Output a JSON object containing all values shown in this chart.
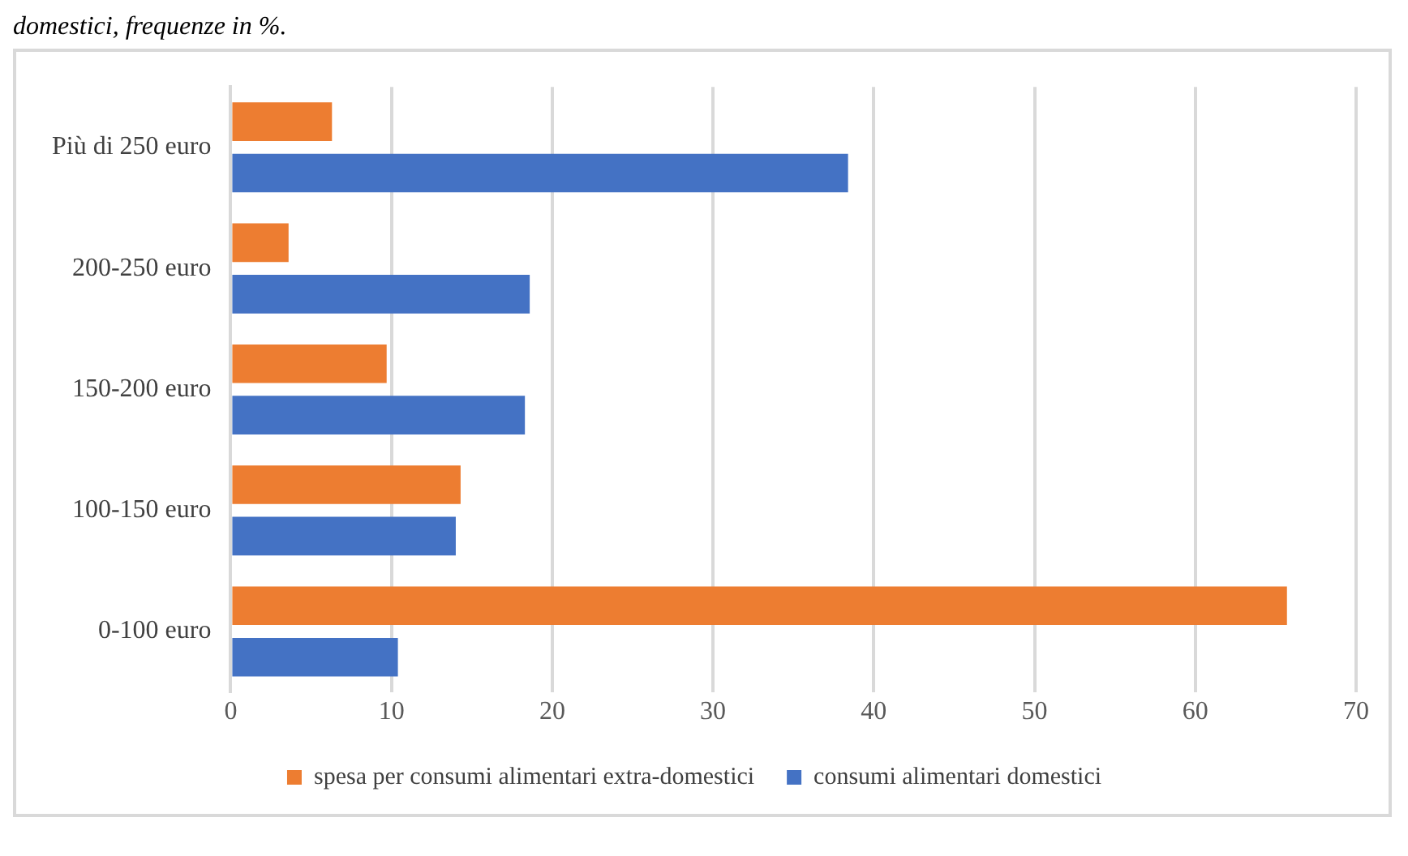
{
  "chart_data": {
    "type": "bar",
    "orientation": "horizontal",
    "annotations": [
      "domestici, frequenze in %."
    ],
    "categories": [
      "Più di 250 euro",
      "200-250 euro",
      "150-200 euro",
      "100-150 euro",
      "0-100 euro"
    ],
    "series": [
      {
        "name": "spesa per consumi alimentari extra-domestici",
        "color": "#ed7d31",
        "values": [
          6.3,
          3.6,
          9.7,
          14.3,
          65.7
        ]
      },
      {
        "name": "consumi alimentari domestici",
        "color": "#4472c4",
        "values": [
          38.4,
          18.6,
          18.3,
          14.0,
          10.4
        ]
      }
    ],
    "xlim": [
      0,
      70
    ],
    "xticks": [
      0,
      10,
      20,
      30,
      40,
      50,
      60,
      70
    ],
    "grid": "x",
    "legend": "bottom"
  }
}
